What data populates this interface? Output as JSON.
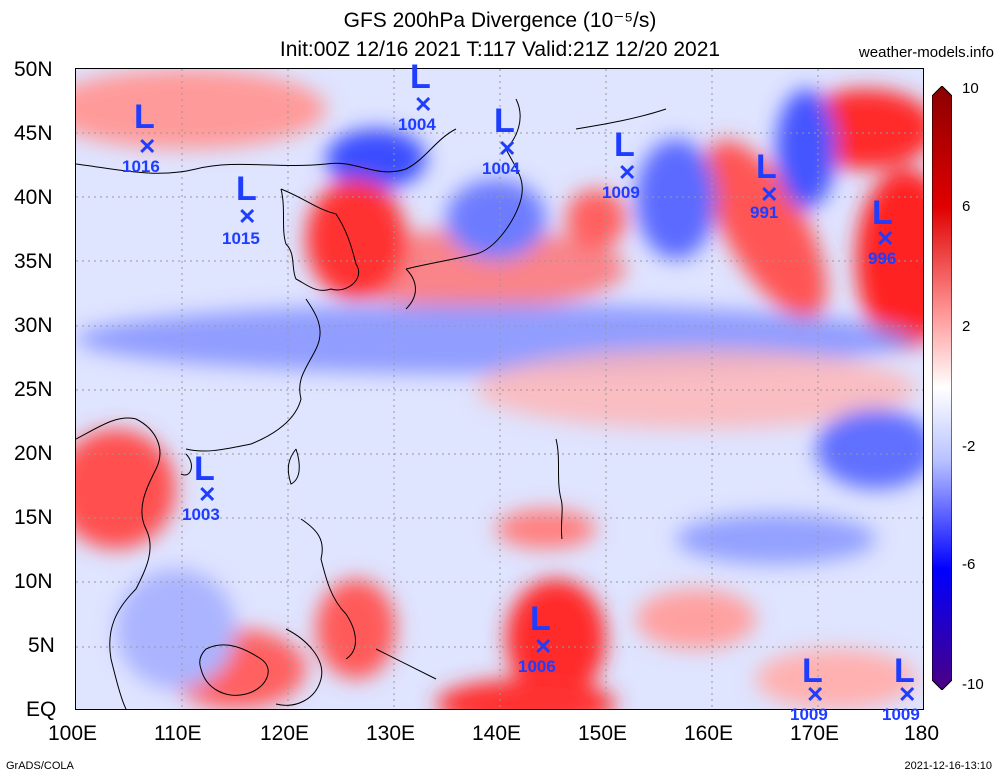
{
  "header": {
    "title_line1": "GFS 200hPa Divergence (10⁻⁵/s)",
    "title_line2": "Init:00Z 12/16 2021 T:117 Valid:21Z 12/20 2021",
    "site": "weather-models.info"
  },
  "axes": {
    "lat_labels": [
      "50N",
      "45N",
      "40N",
      "35N",
      "30N",
      "25N",
      "20N",
      "15N",
      "10N",
      "5N",
      "EQ"
    ],
    "lon_labels": [
      "100E",
      "110E",
      "120E",
      "130E",
      "140E",
      "150E",
      "160E",
      "170E",
      "180"
    ]
  },
  "colorbar": {
    "ticks": [
      "10",
      "6",
      "2",
      "-2",
      "-6",
      "-10"
    ],
    "colors": [
      "#4b0082",
      "#0000ff",
      "#6b7bff",
      "#c9d2ff",
      "#ffffff",
      "#ffc9c9",
      "#ff6060",
      "#e00000",
      "#8b0000"
    ]
  },
  "lows": [
    {
      "letter": "L",
      "pressure": "1016"
    },
    {
      "letter": "L",
      "pressure": "1015"
    },
    {
      "letter": "L",
      "pressure": "1004"
    },
    {
      "letter": "L",
      "pressure": "1004"
    },
    {
      "letter": "L",
      "pressure": "1009"
    },
    {
      "letter": "L",
      "pressure": "991"
    },
    {
      "letter": "L",
      "pressure": "996"
    },
    {
      "letter": "L",
      "pressure": "1003"
    },
    {
      "letter": "L",
      "pressure": "1006"
    },
    {
      "letter": "L",
      "pressure": "1009"
    },
    {
      "letter": "L",
      "pressure": "1009"
    }
  ],
  "footer": {
    "left": "GrADS/COLA",
    "right": "2021-12-16-13:10"
  }
}
